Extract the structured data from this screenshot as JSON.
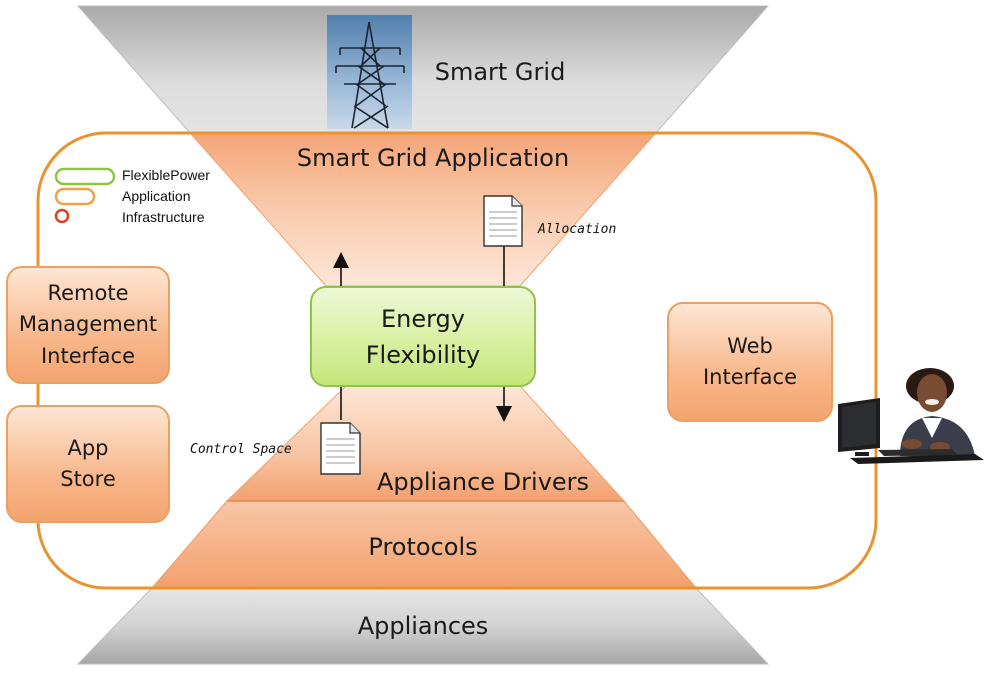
{
  "layers": {
    "smart_grid": "Smart Grid",
    "smart_grid_application": "Smart Grid Application",
    "energy_flexibility": "Energy\nFlexibility",
    "appliance_drivers": "Appliance Drivers",
    "protocols": "Protocols",
    "appliances": "Appliances"
  },
  "side_boxes": {
    "remote_management": "Remote\nManagement\nInterface",
    "app_store": "App\nStore",
    "web_interface": "Web\nInterface"
  },
  "legend": {
    "items": [
      {
        "label": "FlexiblePower",
        "color": "#8cc63f"
      },
      {
        "label": "Application",
        "color": "#f0a04b"
      },
      {
        "label": "Infrastructure",
        "color": "#e2401c"
      }
    ]
  },
  "messages": {
    "allocation": "Allocation",
    "control_space": "Control Space"
  },
  "colors": {
    "grey_layer": "#d4d4d4",
    "orange_layer": "#f7b48a",
    "orange_border": "#e8932f",
    "green_box": "#cdea8a"
  }
}
